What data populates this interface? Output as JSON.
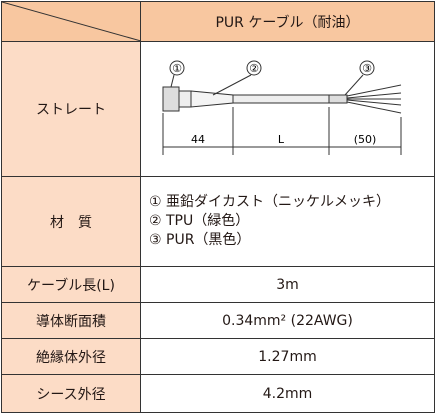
{
  "table": {
    "header": {
      "title": "PUR ケーブル（耐油）"
    },
    "straight": {
      "label": "ストレート",
      "callouts": [
        "①",
        "②",
        "③"
      ],
      "dims": [
        "44",
        "L",
        "(50)"
      ]
    },
    "material": {
      "label": "材　質",
      "lines": [
        "① 亜鉛ダイカスト（ニッケルメッキ）",
        "② TPU（緑色）",
        "③ PUR（黒色）"
      ]
    },
    "rows": [
      [
        "ケーブル長(L)",
        "3m"
      ],
      [
        "導体断面積",
        "0.34mm² (22AWG)"
      ],
      [
        "絶縁体外径",
        "1.27mm"
      ],
      [
        "シース外径",
        "4.2mm"
      ]
    ]
  }
}
